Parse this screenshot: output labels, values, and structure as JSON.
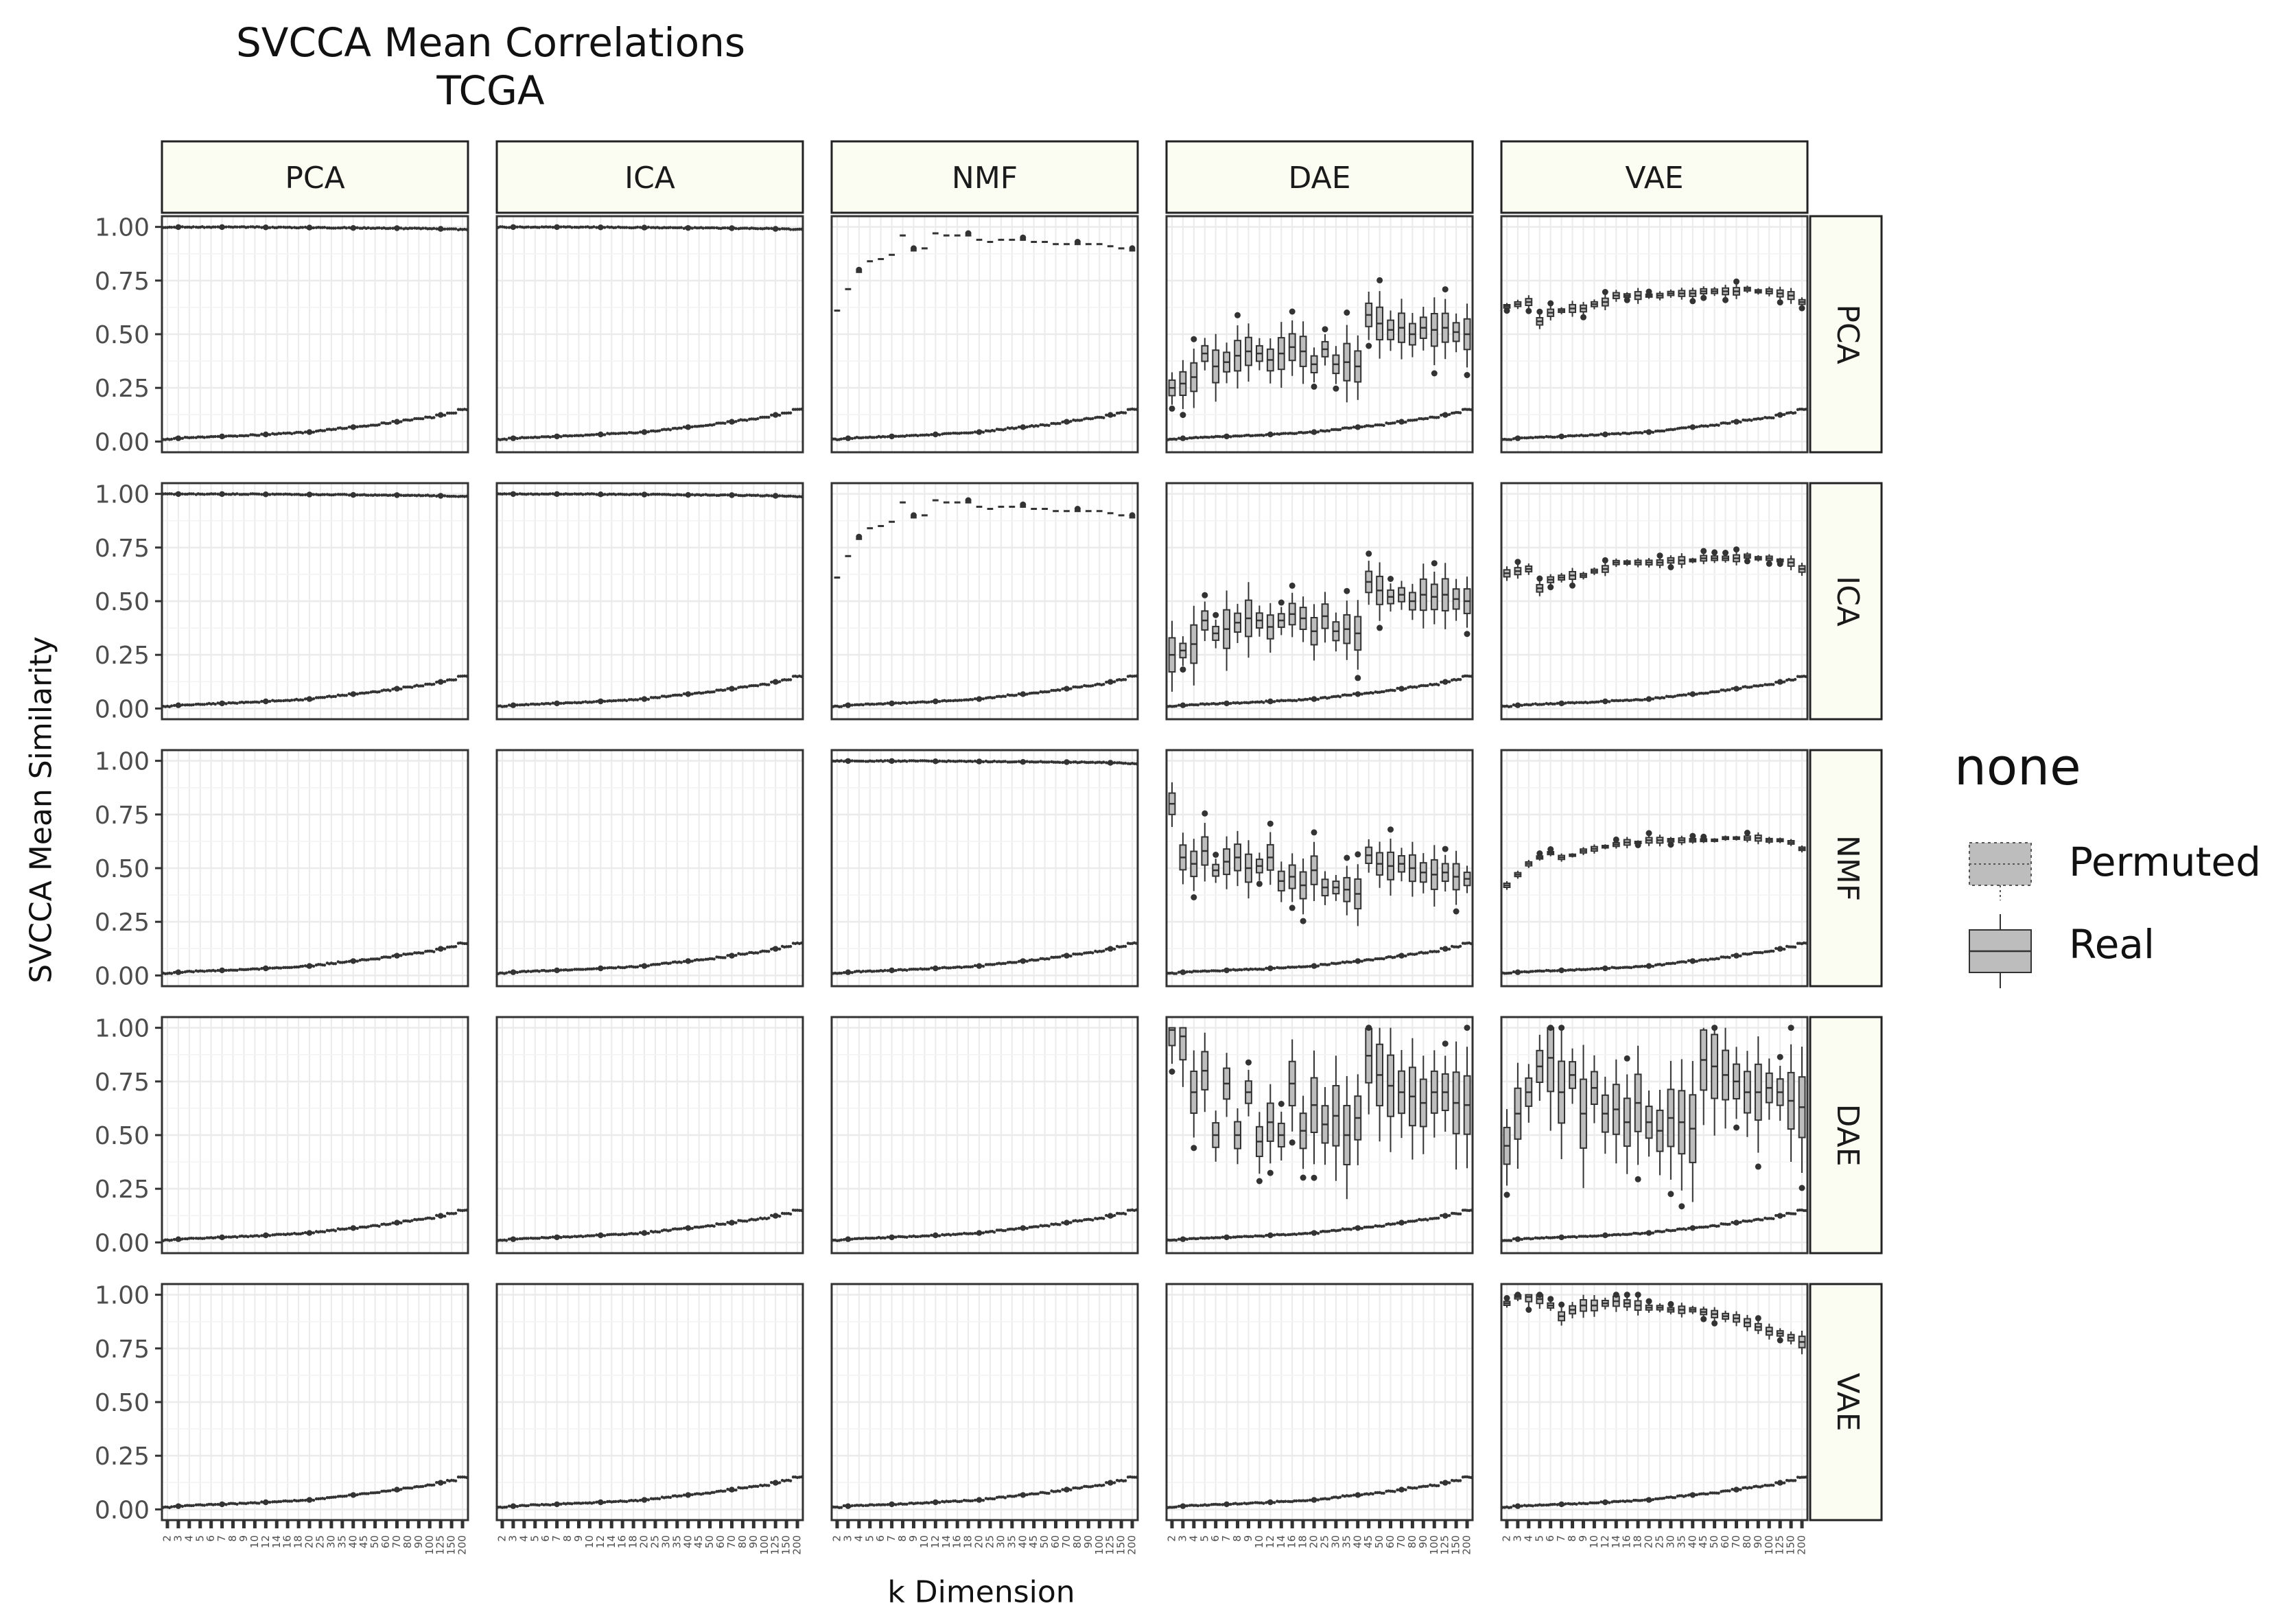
{
  "chart_data": {
    "type": "box",
    "title": "SVCCA Mean Correlations",
    "subtitle": "TCGA",
    "xlabel": "k Dimension",
    "ylabel": "SVCCA Mean Similarity",
    "ylim": [
      0,
      1
    ],
    "yticks": [
      "0.00",
      "0.25",
      "0.50",
      "0.75",
      "1.00"
    ],
    "x_categories": [
      "2",
      "3",
      "4",
      "5",
      "6",
      "7",
      "8",
      "9",
      "10",
      "12",
      "14",
      "16",
      "18",
      "20",
      "25",
      "30",
      "35",
      "40",
      "45",
      "50",
      "60",
      "70",
      "80",
      "90",
      "100",
      "125",
      "150",
      "200"
    ],
    "facet_columns": [
      "PCA",
      "ICA",
      "NMF",
      "DAE",
      "VAE"
    ],
    "facet_rows": [
      "PCA",
      "ICA",
      "NMF",
      "DAE",
      "VAE"
    ],
    "grid": true,
    "legend": {
      "title": "none",
      "position": "right",
      "entries": [
        {
          "label": "Permuted",
          "style": "dotted"
        },
        {
          "label": "Real",
          "style": "solid"
        }
      ]
    },
    "panel_profiles": {
      "permuted_low": [
        0.01,
        0.015,
        0.018,
        0.02,
        0.022,
        0.024,
        0.026,
        0.028,
        0.03,
        0.033,
        0.036,
        0.038,
        0.041,
        0.044,
        0.05,
        0.056,
        0.062,
        0.067,
        0.072,
        0.077,
        0.085,
        0.092,
        0.1,
        0.106,
        0.112,
        0.124,
        0.134,
        0.15
      ],
      "real_pca": [
        0.999,
        0.999,
        0.999,
        0.999,
        0.999,
        0.999,
        0.999,
        0.999,
        0.999,
        0.998,
        0.998,
        0.998,
        0.997,
        0.997,
        0.997,
        0.996,
        0.996,
        0.995,
        0.995,
        0.995,
        0.994,
        0.994,
        0.993,
        0.993,
        0.992,
        0.991,
        0.99,
        0.988
      ],
      "real_nmf": [
        0.61,
        0.71,
        0.79,
        0.84,
        0.85,
        0.87,
        0.96,
        0.89,
        0.9,
        0.97,
        0.96,
        0.96,
        0.96,
        0.94,
        0.93,
        0.94,
        0.94,
        0.94,
        0.93,
        0.93,
        0.92,
        0.92,
        0.92,
        0.92,
        0.92,
        0.91,
        0.9,
        0.89
      ],
      "real_dae_pca": [
        0.25,
        0.27,
        0.3,
        0.41,
        0.35,
        0.37,
        0.4,
        0.42,
        0.41,
        0.38,
        0.41,
        0.44,
        0.42,
        0.36,
        0.43,
        0.36,
        0.37,
        0.35,
        0.59,
        0.55,
        0.52,
        0.53,
        0.5,
        0.53,
        0.52,
        0.53,
        0.51,
        0.5
      ],
      "real_vae_pca": [
        0.63,
        0.64,
        0.65,
        0.56,
        0.6,
        0.61,
        0.62,
        0.62,
        0.64,
        0.65,
        0.68,
        0.68,
        0.68,
        0.68,
        0.68,
        0.69,
        0.69,
        0.69,
        0.7,
        0.7,
        0.7,
        0.7,
        0.71,
        0.7,
        0.7,
        0.69,
        0.68,
        0.65
      ],
      "real_dae_nmf": [
        0.8,
        0.55,
        0.52,
        0.58,
        0.49,
        0.53,
        0.55,
        0.5,
        0.51,
        0.55,
        0.44,
        0.46,
        0.42,
        0.49,
        0.41,
        0.41,
        0.4,
        0.38,
        0.56,
        0.52,
        0.51,
        0.52,
        0.5,
        0.48,
        0.47,
        0.48,
        0.46,
        0.45
      ],
      "real_vae_nmf": [
        0.42,
        0.47,
        0.52,
        0.55,
        0.57,
        0.55,
        0.56,
        0.58,
        0.59,
        0.6,
        0.61,
        0.62,
        0.62,
        0.63,
        0.63,
        0.63,
        0.63,
        0.63,
        0.63,
        0.63,
        0.64,
        0.64,
        0.64,
        0.64,
        0.63,
        0.63,
        0.62,
        0.59
      ],
      "real_dae_dae": [
        0.99,
        0.96,
        0.7,
        0.8,
        0.5,
        0.74,
        0.5,
        0.7,
        0.47,
        0.56,
        0.5,
        0.74,
        0.52,
        0.64,
        0.55,
        0.59,
        0.5,
        0.58,
        0.87,
        0.78,
        0.73,
        0.7,
        0.68,
        0.65,
        0.7,
        0.7,
        0.65,
        0.64
      ],
      "real_vae_dae": [
        0.45,
        0.6,
        0.7,
        0.82,
        0.86,
        0.7,
        0.78,
        0.6,
        0.72,
        0.6,
        0.62,
        0.56,
        0.65,
        0.56,
        0.52,
        0.58,
        0.56,
        0.53,
        0.85,
        0.82,
        0.78,
        0.75,
        0.7,
        0.7,
        0.72,
        0.7,
        0.66,
        0.63
      ],
      "real_vae_vae": [
        0.96,
        0.99,
        0.99,
        0.98,
        0.95,
        0.9,
        0.93,
        0.95,
        0.95,
        0.96,
        0.97,
        0.96,
        0.95,
        0.94,
        0.94,
        0.93,
        0.93,
        0.93,
        0.92,
        0.91,
        0.9,
        0.89,
        0.87,
        0.85,
        0.83,
        0.82,
        0.8,
        0.78
      ]
    }
  }
}
